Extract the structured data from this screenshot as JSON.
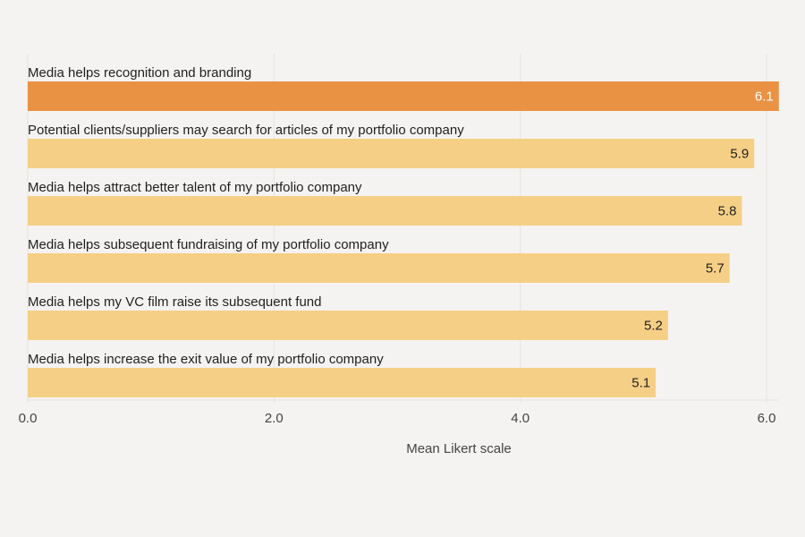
{
  "chart_data": {
    "type": "bar",
    "orientation": "horizontal",
    "title": "",
    "xlabel": "Mean Likert scale",
    "ylabel": "",
    "xlim": [
      0,
      6.1
    ],
    "xticks": [
      0,
      2,
      4,
      6
    ],
    "xtick_labels": [
      "0.0",
      "2.0",
      "4.0",
      "6.0"
    ],
    "grid": "vertical",
    "categories": [
      "Media helps recognition and branding",
      "Potential clients/suppliers may search for articles of my portfolio company",
      "Media helps attract better talent of my portfolio company",
      "Media helps subsequent fundraising of my portfolio company",
      "Media helps my VC film raise its subsequent fund",
      "Media helps increase the exit value of my portfolio company"
    ],
    "values": [
      6.1,
      5.9,
      5.8,
      5.7,
      5.2,
      5.1
    ],
    "value_labels": [
      "6.1",
      "5.9",
      "5.8",
      "5.7",
      "5.2",
      "5.1"
    ],
    "highlight_index": 0,
    "colors": {
      "highlight": "#ea9244",
      "default": "#f6cf86",
      "background": "#f5f3f1",
      "grid": "#e6e2dd"
    }
  }
}
